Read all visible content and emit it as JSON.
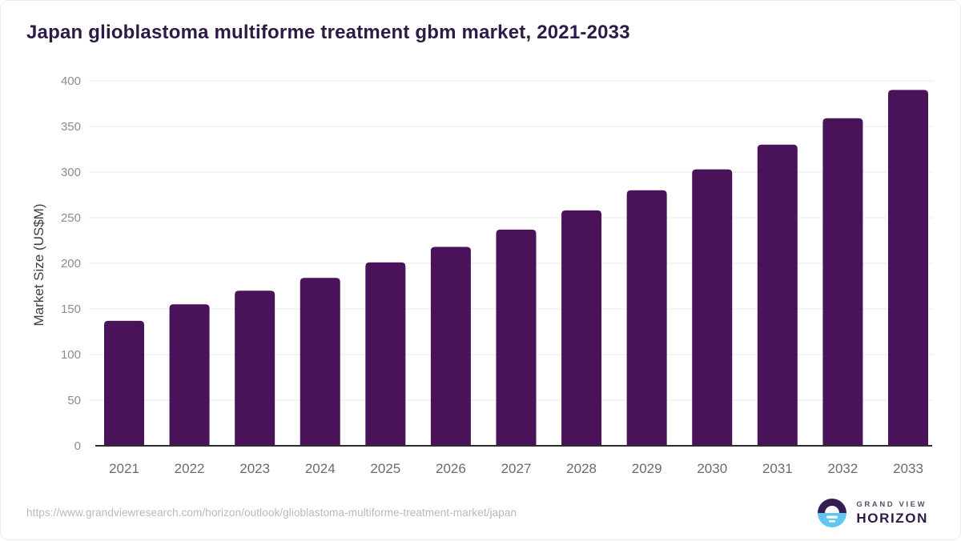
{
  "header": {
    "title": "Japan glioblastoma multiforme treatment gbm market, 2021-2033"
  },
  "chart_data": {
    "type": "bar",
    "title": "Japan glioblastoma multiforme treatment gbm market, 2021-2033",
    "categories": [
      "2021",
      "2022",
      "2023",
      "2024",
      "2025",
      "2026",
      "2027",
      "2028",
      "2029",
      "2030",
      "2031",
      "2032",
      "2033"
    ],
    "values": [
      137,
      155,
      170,
      184,
      201,
      218,
      237,
      258,
      280,
      303,
      330,
      359,
      390
    ],
    "xlabel": "",
    "ylabel": "Market Size (US$M)",
    "ylim": [
      0,
      400
    ],
    "ytick_step": 50,
    "grid": true,
    "legend": "none",
    "bar_color": "#4a1259"
  },
  "colors": {
    "title_text": "#2e1a47",
    "bar": "#4a1259",
    "gridline": "#e9e9e9",
    "axis_line": "#2d2d2d",
    "tick_label": "#8c8c8c",
    "x_label": "#6b6b6b",
    "logo_purple": "#332051",
    "logo_blue": "#5ec6f0"
  },
  "footer": {
    "source_url": "https://www.grandviewresearch.com/horizon/outlook/glioblastoma-multiforme-treatment-market/japan",
    "brand_line1": "GRAND VIEW",
    "brand_line2": "HORIZON"
  }
}
